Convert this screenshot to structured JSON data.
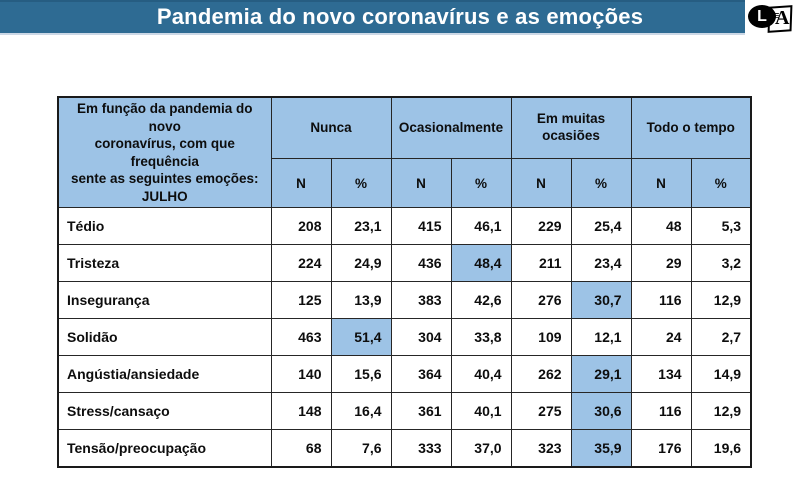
{
  "header": {
    "title": "Pandemia do novo coronavírus e as emoções",
    "bar_color": "#2E6B93",
    "logo": {
      "l": "L",
      "lines": "≡",
      "a": "A"
    }
  },
  "table": {
    "highlight_color": "#9DC3E6",
    "corner_lines": [
      "Em função da pandemia do novo",
      "coronavírus, com que frequência",
      "sente as seguintes emoções:",
      "JULHO"
    ],
    "groups": [
      {
        "label": "Nunca"
      },
      {
        "label": "Ocasionalmente"
      },
      {
        "label": "Em muitas ocasiões"
      },
      {
        "label": "Todo o tempo"
      }
    ],
    "subheaders": [
      "N",
      "%"
    ],
    "rows": [
      {
        "label": "Tédio",
        "values": [
          "208",
          "23,1",
          "415",
          "46,1",
          "229",
          "25,4",
          "48",
          "5,3"
        ],
        "highlight": []
      },
      {
        "label": "Tristeza",
        "values": [
          "224",
          "24,9",
          "436",
          "48,4",
          "211",
          "23,4",
          "29",
          "3,2"
        ],
        "highlight": [
          3
        ]
      },
      {
        "label": "Insegurança",
        "values": [
          "125",
          "13,9",
          "383",
          "42,6",
          "276",
          "30,7",
          "116",
          "12,9"
        ],
        "highlight": [
          5
        ]
      },
      {
        "label": "Solidão",
        "values": [
          "463",
          "51,4",
          "304",
          "33,8",
          "109",
          "12,1",
          "24",
          "2,7"
        ],
        "highlight": [
          1
        ]
      },
      {
        "label": "Angústia/ansiedade",
        "values": [
          "140",
          "15,6",
          "364",
          "40,4",
          "262",
          "29,1",
          "134",
          "14,9"
        ],
        "highlight": [
          5
        ]
      },
      {
        "label": "Stress/cansaço",
        "values": [
          "148",
          "16,4",
          "361",
          "40,1",
          "275",
          "30,6",
          "116",
          "12,9"
        ],
        "highlight": [
          5
        ]
      },
      {
        "label": "Tensão/preocupação",
        "values": [
          "68",
          "7,6",
          "333",
          "37,0",
          "323",
          "35,9",
          "176",
          "19,6"
        ],
        "highlight": [
          5
        ]
      }
    ]
  }
}
